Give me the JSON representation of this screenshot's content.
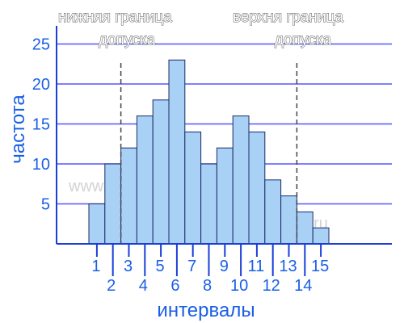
{
  "chart_data": {
    "type": "bar",
    "title": "",
    "xlabel": "интервалы",
    "ylabel": "частота",
    "ylim": [
      0,
      26
    ],
    "yticks": [
      5,
      10,
      15,
      20,
      25
    ],
    "grid": true,
    "categories": [
      "1",
      "2",
      "3",
      "4",
      "5",
      "6",
      "7",
      "8",
      "9",
      "10",
      "11",
      "12",
      "13",
      "14",
      "15"
    ],
    "values": [
      5,
      10,
      12,
      16,
      18,
      23,
      14,
      10,
      12,
      16,
      14,
      8,
      6,
      4,
      2
    ],
    "annotations": {
      "lower_limit_label_line1": "нижняя граница",
      "lower_limit_label_line2": "допуска",
      "upper_limit_label_line1": "верхня граница",
      "upper_limit_label_line2": "допуска",
      "lower_limit_position": 2.5,
      "upper_limit_position": 13.5
    },
    "watermarks": [
      "www.kpms.ru",
      "www.kpms.ru"
    ],
    "colors": {
      "bar": "#a9d0f5",
      "grid": "#5555ff",
      "text": "#1a5fe6"
    }
  }
}
